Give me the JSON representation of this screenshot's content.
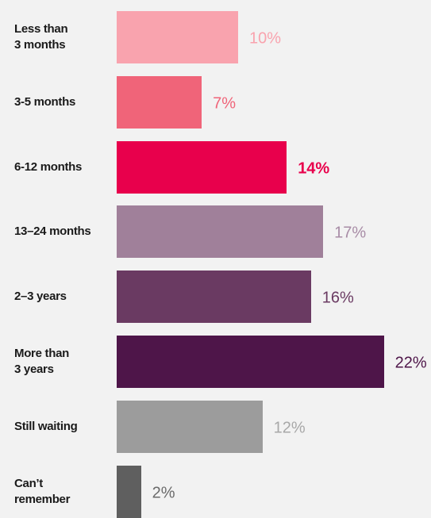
{
  "chart_data": {
    "type": "bar",
    "orientation": "horizontal",
    "categories": [
      "Less than\n3 months",
      "3-5 months",
      "6-12 months",
      "13–24 months",
      "2–3 years",
      "More than\n 3 years",
      "Still waiting",
      "Can’t\nremember"
    ],
    "values": [
      10,
      7,
      14,
      17,
      16,
      22,
      12,
      2
    ],
    "value_labels": [
      "10%",
      "7%",
      "14%",
      "17%",
      "16%",
      "22%",
      "12%",
      "2%"
    ],
    "colors": [
      "#f9a3ae",
      "#f06479",
      "#e8004c",
      "#a0809a",
      "#6a3a62",
      "#4e1549",
      "#9c9c9c",
      "#5f5f5f"
    ],
    "label_colors": [
      "#f9a3ae",
      "#f06479",
      "#e8004c",
      "#a88ca6",
      "#6a3a62",
      "#4e1549",
      "#a8a8a8",
      "#6a6a6a"
    ]
  }
}
